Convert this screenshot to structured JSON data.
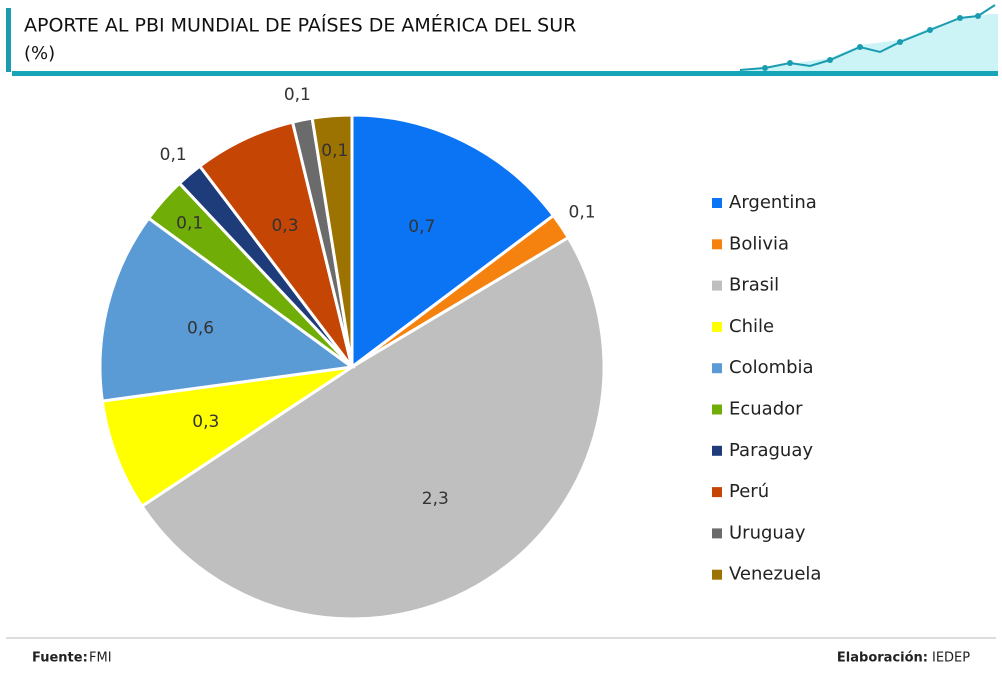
{
  "chart_data": {
    "type": "pie",
    "title": "APORTE AL PBI MUNDIAL DE PAÍSES DE AMÉRICA DEL SUR",
    "subtitle": "(%)",
    "categories": [
      "Argentina",
      "Bolivia",
      "Brasil",
      "Chile",
      "Colombia",
      "Ecuador",
      "Paraguay",
      "Perú",
      "Uruguay",
      "Venezuela"
    ],
    "values": [
      0.7,
      0.08,
      2.34,
      0.34,
      0.58,
      0.14,
      0.08,
      0.31,
      0.06,
      0.12
    ],
    "value_labels": [
      "0,7",
      "0,1",
      "2,3",
      "0,3",
      "0,6",
      "0,1",
      "0,1",
      "0,3",
      "0,1",
      "0,1"
    ],
    "colors": [
      "#0a74f5",
      "#f5820f",
      "#bfbfbf",
      "#ffff00",
      "#5b9bd5",
      "#70ad07",
      "#1f3c7a",
      "#c54505",
      "#6b6b6b",
      "#9c7200"
    ],
    "legend": "right"
  },
  "footer": {
    "source_label": "Fuente:",
    "source": "FMI",
    "credit_label": "Elaboración:",
    "credit": "IEDEP"
  }
}
